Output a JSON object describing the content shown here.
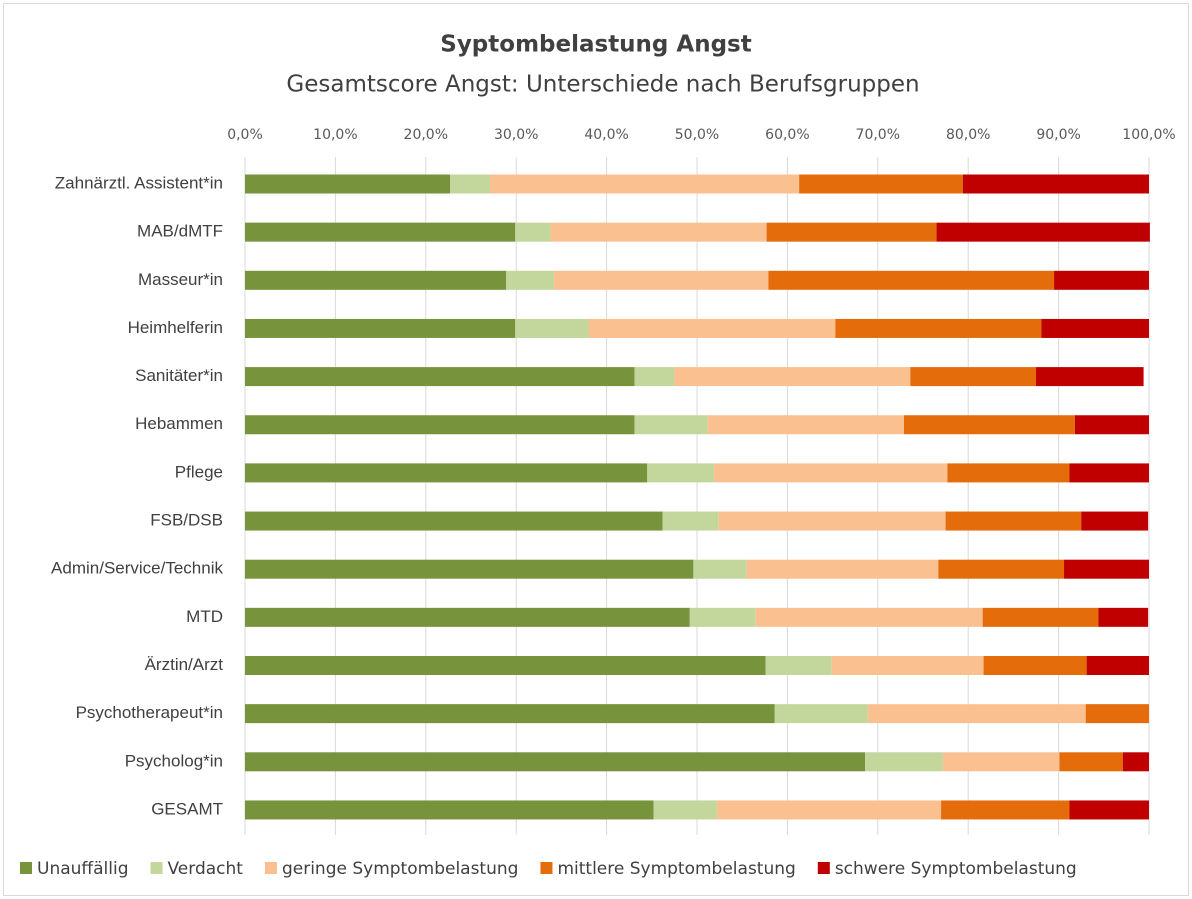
{
  "chart_data": {
    "type": "stacked_barh",
    "title": "Syptombelastung Angst",
    "subtitle": "Gesamtscore Angst: Unterschiede nach Berufsgruppen",
    "categories": [
      "Zahnärztl. Assistent*in",
      "MAB/dMTF",
      "Masseur*in",
      "Heimhelferin",
      "Sanitäter*in",
      "Hebammen",
      "Pflege",
      "FSB/DSB",
      "Admin/Service/Technik",
      "MTD",
      "Ärztin/Arzt",
      "Psychotherapeut*in",
      "Psycholog*in",
      "GESAMT"
    ],
    "series": [
      {
        "name": "Unauffällig",
        "color": "#77933c",
        "values": [
          22.7,
          29.9,
          28.9,
          29.9,
          43.1,
          43.1,
          44.5,
          46.2,
          49.6,
          49.2,
          57.6,
          58.6,
          68.6,
          45.2
        ]
      },
      {
        "name": "Verdacht",
        "color": "#c3d69b",
        "values": [
          4.4,
          3.9,
          5.3,
          8.1,
          4.4,
          8.1,
          7.4,
          6.2,
          5.9,
          7.3,
          7.3,
          10.3,
          8.6,
          7.0
        ]
      },
      {
        "name": "geringe Symptombelastung",
        "color": "#fac090",
        "values": [
          34.2,
          23.9,
          23.7,
          27.3,
          26.1,
          21.7,
          25.8,
          25.1,
          21.2,
          25.1,
          16.8,
          24.1,
          12.9,
          24.8
        ]
      },
      {
        "name": "mittlere Symptombelastung",
        "color": "#e46c0a",
        "values": [
          18.1,
          18.8,
          31.6,
          22.8,
          13.9,
          18.9,
          13.5,
          15.0,
          13.9,
          12.8,
          11.4,
          7.0,
          7.0,
          14.2
        ]
      },
      {
        "name": "schwere Symptombelastung",
        "color": "#c00000",
        "values": [
          20.6,
          23.6,
          10.5,
          11.9,
          11.9,
          8.2,
          8.8,
          7.4,
          9.4,
          5.5,
          6.9,
          0,
          2.9,
          8.8
        ]
      }
    ],
    "xlim": [
      0,
      100
    ],
    "xticks": [
      {
        "value": 0,
        "label": "0,0%"
      },
      {
        "value": 10,
        "label": "10,0%"
      },
      {
        "value": 20,
        "label": "20,0%"
      },
      {
        "value": 30,
        "label": "30,0%"
      },
      {
        "value": 40,
        "label": "40,0%"
      },
      {
        "value": 50,
        "label": "50,0%"
      },
      {
        "value": 60,
        "label": "60,0%"
      },
      {
        "value": 70,
        "label": "70,0%"
      },
      {
        "value": 80,
        "label": "80,0%"
      },
      {
        "value": 90,
        "label": "90,0%"
      },
      {
        "value": 100,
        "label": "100,0%"
      }
    ],
    "grid": true,
    "legend": "bottom"
  }
}
